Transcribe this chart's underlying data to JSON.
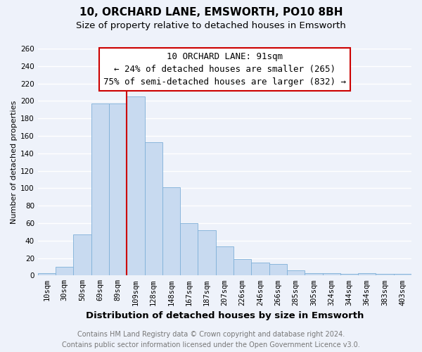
{
  "title": "10, ORCHARD LANE, EMSWORTH, PO10 8BH",
  "subtitle": "Size of property relative to detached houses in Emsworth",
  "xlabel": "Distribution of detached houses by size in Emsworth",
  "ylabel": "Number of detached properties",
  "categories": [
    "10sqm",
    "30sqm",
    "50sqm",
    "69sqm",
    "89sqm",
    "109sqm",
    "128sqm",
    "148sqm",
    "167sqm",
    "187sqm",
    "207sqm",
    "226sqm",
    "246sqm",
    "266sqm",
    "285sqm",
    "305sqm",
    "324sqm",
    "344sqm",
    "364sqm",
    "383sqm",
    "403sqm"
  ],
  "values": [
    3,
    10,
    47,
    197,
    197,
    205,
    153,
    101,
    60,
    52,
    33,
    19,
    15,
    13,
    6,
    3,
    3,
    2,
    3,
    2,
    2
  ],
  "bar_color": "#c8daf0",
  "bar_edge_color": "#7fb0d8",
  "marker_line_color": "#cc0000",
  "annotation_text_line1": "10 ORCHARD LANE: 91sqm",
  "annotation_text_line2": "← 24% of detached houses are smaller (265)",
  "annotation_text_line3": "75% of semi-detached houses are larger (832) →",
  "annotation_box_facecolor": "#ffffff",
  "annotation_box_edgecolor": "#cc0000",
  "ylim": [
    0,
    260
  ],
  "yticks": [
    0,
    20,
    40,
    60,
    80,
    100,
    120,
    140,
    160,
    180,
    200,
    220,
    240,
    260
  ],
  "footer_line1": "Contains HM Land Registry data © Crown copyright and database right 2024.",
  "footer_line2": "Contains public sector information licensed under the Open Government Licence v3.0.",
  "bg_color": "#eef2fa",
  "grid_color": "#ffffff",
  "title_fontsize": 11,
  "subtitle_fontsize": 9.5,
  "xlabel_fontsize": 9.5,
  "ylabel_fontsize": 8,
  "tick_fontsize": 7.5,
  "footer_fontsize": 7,
  "annotation_fontsize": 9
}
